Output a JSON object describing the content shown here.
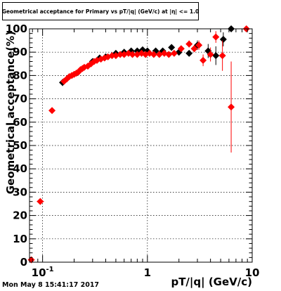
{
  "chart_data": {
    "type": "scatter",
    "title": "Geometrical acceptance for Primary vs pT/|q| (GeV/c) at |η| <= 1.0",
    "xlabel": "pT/|q| (GeV/c)",
    "ylabel": "Geometrical acceptance(%)",
    "xscale": "log",
    "xlim": [
      0.075,
      10
    ],
    "ylim": [
      0,
      100
    ],
    "grid": true,
    "x_ticks": [
      {
        "value": 0.1,
        "label": "10",
        "exp": "-1"
      },
      {
        "value": 1,
        "label": "1",
        "exp": ""
      },
      {
        "value": 10,
        "label": "10",
        "exp": ""
      }
    ],
    "y_ticks": [
      0,
      10,
      20,
      30,
      40,
      50,
      60,
      70,
      80,
      90,
      100
    ],
    "y_tick_labels": [
      "0",
      "10",
      "20",
      "30",
      "40",
      "50",
      "60",
      "70",
      "80",
      "90",
      "100"
    ],
    "series": [
      {
        "color": "#000000",
        "points": [
          {
            "x": 0.155,
            "y": 77.0,
            "ey": 1.5
          },
          {
            "x": 0.3,
            "y": 86.0
          },
          {
            "x": 0.35,
            "y": 87.5
          },
          {
            "x": 0.4,
            "y": 88.0
          },
          {
            "x": 0.5,
            "y": 89.5
          },
          {
            "x": 0.6,
            "y": 90.0
          },
          {
            "x": 0.7,
            "y": 90.5
          },
          {
            "x": 0.8,
            "y": 90.5
          },
          {
            "x": 0.9,
            "y": 91.0
          },
          {
            "x": 1.0,
            "y": 90.5
          },
          {
            "x": 1.2,
            "y": 90.5
          },
          {
            "x": 1.4,
            "y": 90.5
          },
          {
            "x": 1.7,
            "y": 92.0
          },
          {
            "x": 2.0,
            "y": 90.0
          },
          {
            "x": 2.5,
            "y": 89.5
          },
          {
            "x": 3.0,
            "y": 93.0,
            "ey": 2.0
          },
          {
            "x": 3.8,
            "y": 90.5,
            "ey": 3.0
          },
          {
            "x": 4.5,
            "y": 88.5,
            "ey": 4.0
          },
          {
            "x": 5.3,
            "y": 95.5,
            "ey": 3.0
          },
          {
            "x": 6.3,
            "y": 100.0
          }
        ]
      },
      {
        "color": "#ff0000",
        "points": [
          {
            "x": 0.078,
            "y": 1.0,
            "ex": [
              0.076,
              0.081
            ]
          },
          {
            "x": 0.095,
            "y": 26.0,
            "ex": [
              0.088,
              0.103
            ]
          },
          {
            "x": 0.123,
            "y": 65.0,
            "ex": [
              0.115,
              0.131
            ]
          },
          {
            "x": 0.16,
            "y": 77.5
          },
          {
            "x": 0.17,
            "y": 78.5
          },
          {
            "x": 0.18,
            "y": 79.5
          },
          {
            "x": 0.19,
            "y": 80.0
          },
          {
            "x": 0.2,
            "y": 80.5
          },
          {
            "x": 0.21,
            "y": 81.0
          },
          {
            "x": 0.22,
            "y": 81.5
          },
          {
            "x": 0.23,
            "y": 82.5
          },
          {
            "x": 0.24,
            "y": 83.0
          },
          {
            "x": 0.25,
            "y": 83.5
          },
          {
            "x": 0.27,
            "y": 84.0
          },
          {
            "x": 0.29,
            "y": 85.0
          },
          {
            "x": 0.31,
            "y": 86.0
          },
          {
            "x": 0.33,
            "y": 86.5
          },
          {
            "x": 0.36,
            "y": 87.0
          },
          {
            "x": 0.39,
            "y": 87.5
          },
          {
            "x": 0.42,
            "y": 88.0
          },
          {
            "x": 0.46,
            "y": 88.5
          },
          {
            "x": 0.5,
            "y": 88.5
          },
          {
            "x": 0.55,
            "y": 89.0
          },
          {
            "x": 0.6,
            "y": 89.0
          },
          {
            "x": 0.66,
            "y": 89.5
          },
          {
            "x": 0.72,
            "y": 89.0
          },
          {
            "x": 0.8,
            "y": 89.0
          },
          {
            "x": 0.88,
            "y": 89.5
          },
          {
            "x": 0.96,
            "y": 89.0
          },
          {
            "x": 1.05,
            "y": 89.5
          },
          {
            "x": 1.15,
            "y": 89.0
          },
          {
            "x": 1.3,
            "y": 89.0
          },
          {
            "x": 1.45,
            "y": 89.5
          },
          {
            "x": 1.6,
            "y": 89.0
          },
          {
            "x": 1.8,
            "y": 89.5
          },
          {
            "x": 2.1,
            "y": 91.5
          },
          {
            "x": 2.5,
            "y": 93.5,
            "ey": 1.5
          },
          {
            "x": 2.8,
            "y": 91.5,
            "ey": 1.5
          },
          {
            "x": 3.1,
            "y": 93.0,
            "ey": 2.0
          },
          {
            "x": 3.4,
            "y": 86.5,
            "ey": 2.5
          },
          {
            "x": 4.0,
            "y": 89.0,
            "ey": 3.0
          },
          {
            "x": 4.5,
            "y": 96.5,
            "ey": 2.5
          },
          {
            "x": 5.2,
            "y": 88.5,
            "ey": 6.5
          },
          {
            "x": 6.3,
            "y": 66.5,
            "ey": 19.5
          },
          {
            "x": 8.8,
            "y": 100.0
          }
        ]
      }
    ]
  },
  "timestamp": "Mon May  8 15:41:17 2017"
}
